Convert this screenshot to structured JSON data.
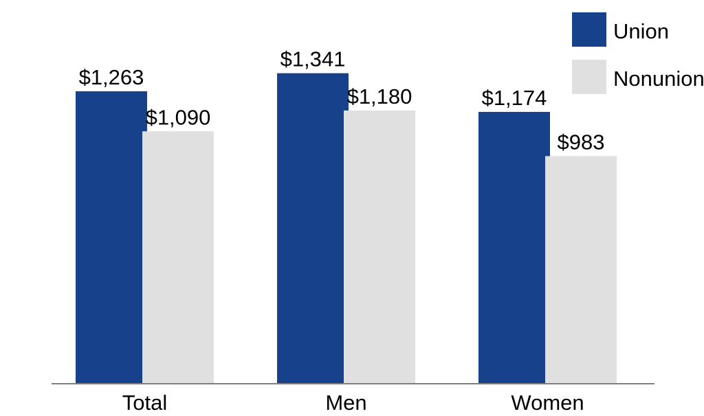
{
  "chart_data": {
    "type": "bar",
    "categories": [
      "Total",
      "Men",
      "Women"
    ],
    "series": [
      {
        "name": "Union",
        "values": [
          1263,
          1341,
          1174
        ],
        "labels": [
          "$1,263",
          "$1,341",
          "$1,174"
        ]
      },
      {
        "name": "Nonunion",
        "values": [
          1090,
          1180,
          983
        ],
        "labels": [
          "$1,090",
          "$1,180",
          "$983"
        ]
      }
    ],
    "title": "",
    "xlabel": "",
    "ylabel": "",
    "ylim": [
      0,
      1500
    ],
    "grid": false,
    "legend_position": "top-right",
    "colors": {
      "Union": "#17418a",
      "Nonunion": "#e0e0e0",
      "axis": "#7f7f7f"
    }
  }
}
